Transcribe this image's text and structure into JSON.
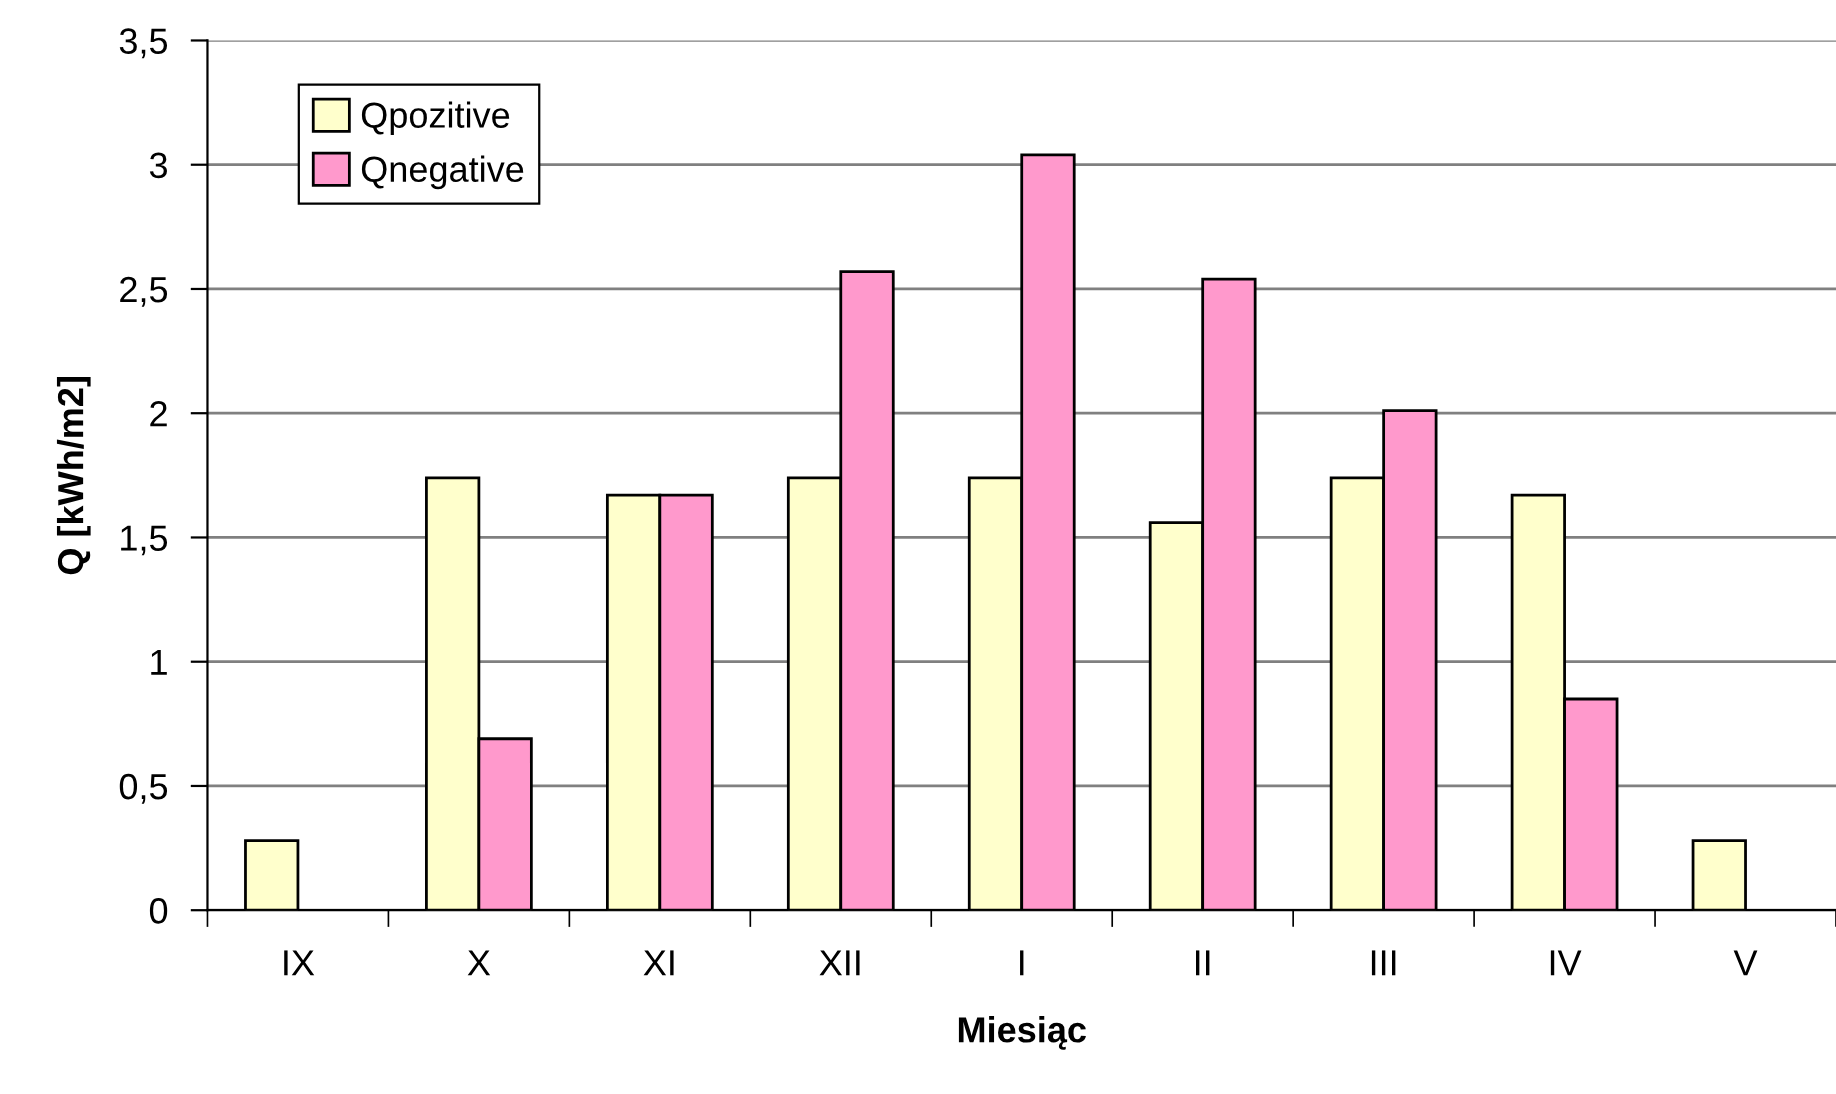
{
  "chart_data": {
    "type": "bar",
    "xlabel": "Miesiąc",
    "ylabel": "Q [kWh/m2]",
    "categories": [
      "IX",
      "X",
      "XI",
      "XII",
      "I",
      "II",
      "III",
      "IV",
      "V"
    ],
    "series": [
      {
        "name": "Qpozitive",
        "color": "#ffffcc",
        "values": [
          0.28,
          1.74,
          1.67,
          1.74,
          1.74,
          1.56,
          1.74,
          1.67,
          0.28
        ]
      },
      {
        "name": "Qnegative",
        "color": "#ff99cc",
        "values": [
          null,
          0.69,
          1.67,
          2.57,
          3.04,
          2.54,
          2.01,
          0.85,
          null
        ]
      }
    ],
    "ylim": [
      0,
      3.5
    ],
    "yticks": [
      0,
      {
        "value": 0.5,
        "label": "0,5"
      },
      1,
      {
        "value": 1.5,
        "label": "1,5"
      },
      2,
      {
        "value": 2.5,
        "label": "2,5"
      },
      3,
      {
        "value": 3.5,
        "label": "3,5"
      }
    ],
    "grid": "y",
    "legend": "top left"
  }
}
